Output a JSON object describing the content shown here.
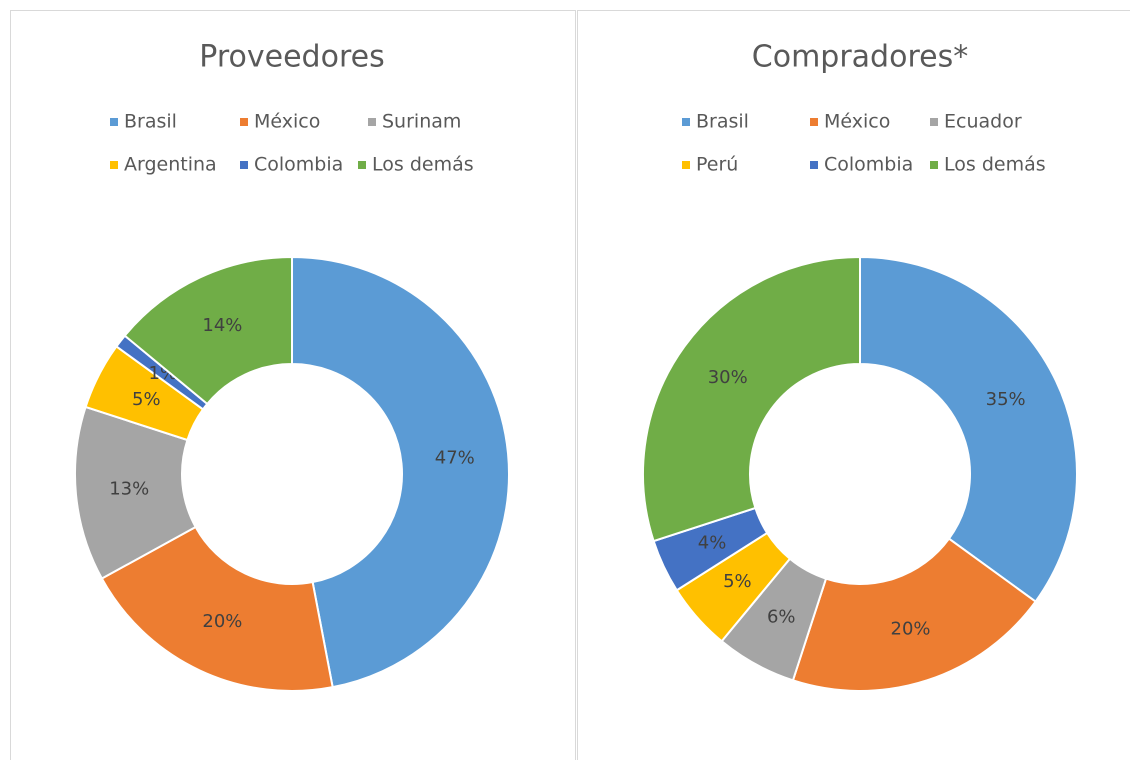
{
  "chart_data": [
    {
      "type": "donut",
      "title": "Proveedores",
      "categories": [
        "Brasil",
        "México",
        "Surinam",
        "Argentina",
        "Colombia",
        "Los demás"
      ],
      "values": [
        47,
        20,
        13,
        5,
        1,
        14
      ],
      "value_labels": [
        "47%",
        "20%",
        "13%",
        "5%",
        "1%",
        "14%"
      ],
      "colors": [
        "#5b9bd5",
        "#ed7d31",
        "#a5a5a5",
        "#ffc000",
        "#4472c4",
        "#70ad47"
      ]
    },
    {
      "type": "donut",
      "title": "Compradores*",
      "categories": [
        "Brasil",
        "México",
        "Ecuador",
        "Perú",
        "Colombia",
        "Los demás"
      ],
      "values": [
        35,
        20,
        6,
        5,
        4,
        30
      ],
      "value_labels": [
        "35%",
        "20%",
        "6%",
        "5%",
        "4%",
        "30%"
      ],
      "colors": [
        "#5b9bd5",
        "#ed7d31",
        "#a5a5a5",
        "#ffc000",
        "#4472c4",
        "#70ad47"
      ]
    }
  ]
}
